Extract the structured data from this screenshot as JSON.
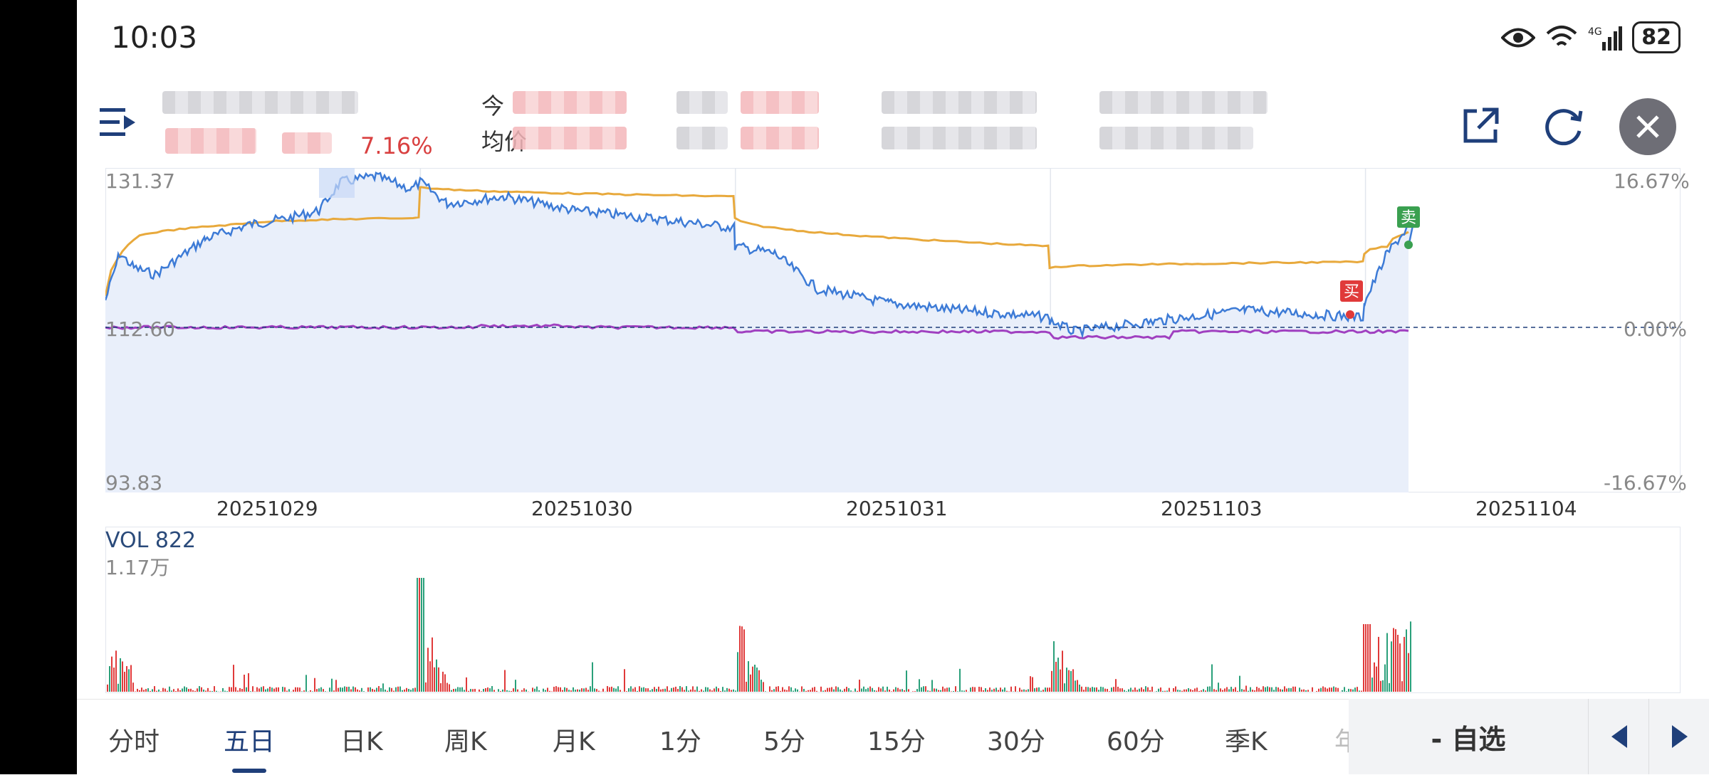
{
  "status": {
    "time": "10:03",
    "battery": "82"
  },
  "header": {
    "label_today": "今",
    "label_avg": "均价",
    "change_pct": "7.16%"
  },
  "chart": {
    "y_max": "131.37",
    "y_mid": "112.60",
    "y_min": "93.83",
    "pct_max": "16.67%",
    "pct_mid": "0.00%",
    "pct_min": "-16.67%",
    "dates": [
      "20251029",
      "20251030",
      "20251031",
      "20251103",
      "20251104"
    ],
    "buy_label": "买",
    "sell_label": "卖"
  },
  "volume": {
    "title": "VOL 822",
    "max": "1.17万"
  },
  "tabs": [
    "分时",
    "五日",
    "日K",
    "周K",
    "月K",
    "1分",
    "5分",
    "15分",
    "30分",
    "60分",
    "季K",
    "年"
  ],
  "active_tab": "五日",
  "buttons": {
    "favorite": "- 自选"
  },
  "chart_data": {
    "type": "line",
    "title": "",
    "categories": [
      "20251029",
      "20251030",
      "20251031",
      "20251103",
      "20251104"
    ],
    "ylim": [
      93.83,
      131.37
    ],
    "series": [
      {
        "name": "price",
        "color": "#3d7bd6"
      },
      {
        "name": "avg",
        "color": "#e8a93c"
      },
      {
        "name": "index",
        "color": "#a040c0"
      }
    ],
    "volume_max": "1.17万"
  },
  "colors": {
    "up": "#e03a3a",
    "down": "#2aa07a",
    "price": "#3d7bd6",
    "avg": "#e8a93c",
    "index": "#a040c0",
    "accent": "#1f3f7a"
  }
}
